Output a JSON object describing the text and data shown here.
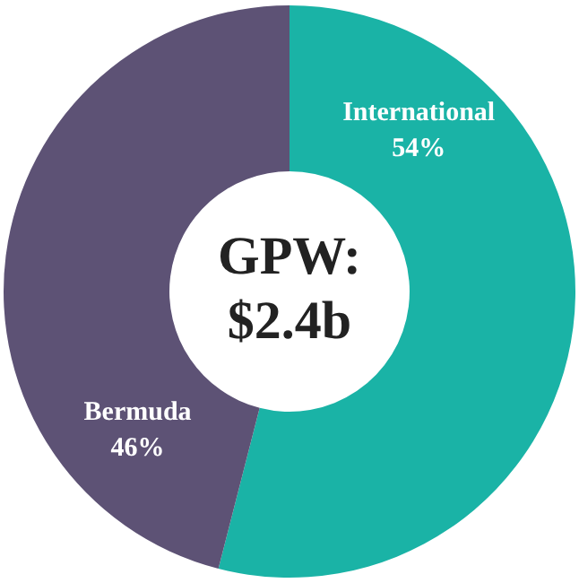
{
  "chart_data": {
    "type": "donut",
    "categories": [
      "International",
      "Bermuda"
    ],
    "values": [
      54,
      46
    ],
    "colors": [
      "#1ab3a6",
      "#5d5275"
    ],
    "value_labels": [
      "54%",
      "46%"
    ],
    "annotations": [
      "GPW:",
      "$2.4b"
    ],
    "legend": false
  }
}
